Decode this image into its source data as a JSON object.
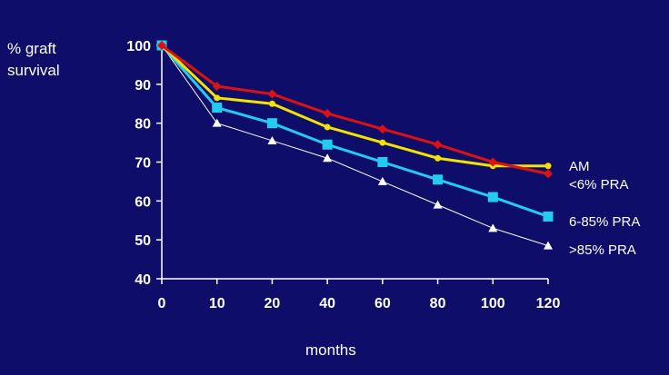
{
  "chart_data": {
    "type": "line",
    "ylabel_lines": [
      "% graft",
      "survival"
    ],
    "xlabel": "months",
    "categories": [
      "0",
      "10",
      "20",
      "40",
      "60",
      "80",
      "100",
      "120"
    ],
    "ylim": [
      40,
      100
    ],
    "yticks": [
      100,
      90,
      80,
      70,
      60,
      50,
      40
    ],
    "grid": false,
    "legend": "right",
    "series": [
      {
        "name": "AM",
        "color": "#f2e300",
        "marker": "circle",
        "values": [
          100,
          86.5,
          85,
          79,
          75,
          71,
          69,
          69
        ]
      },
      {
        "name": "<6% PRA",
        "color": "#dd1111",
        "marker": "diamond",
        "values": [
          100,
          89.5,
          87.5,
          82.5,
          78.5,
          74.5,
          70,
          67
        ]
      },
      {
        "name": "6-85% PRA",
        "color": "#22ccee",
        "marker": "square",
        "values": [
          100,
          84,
          80,
          74.5,
          70,
          65.5,
          61,
          56
        ]
      },
      {
        "name": ">85% PRA",
        "color": "#ffffff",
        "marker": "triangle",
        "values": [
          100,
          80,
          75.5,
          71,
          65,
          59,
          53,
          48.5
        ]
      }
    ]
  }
}
